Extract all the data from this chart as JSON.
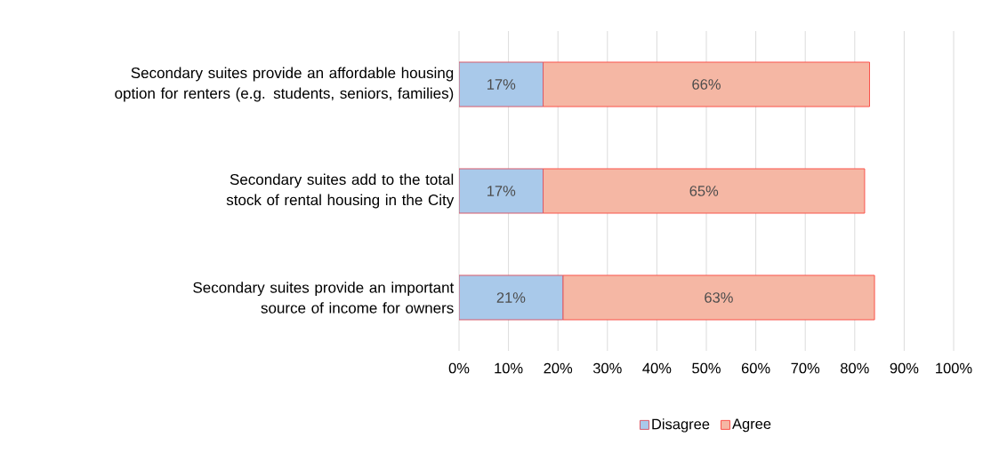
{
  "chart_data": {
    "type": "bar",
    "orientation": "horizontal",
    "stacked": true,
    "categories": [
      "Secondary suites provide an affordable housing option for renters (e.g. students, seniors, families)",
      "Secondary suites add to the total stock of rental housing in the City",
      "Secondary suites provide an important source of income for owners"
    ],
    "series": [
      {
        "name": "Disagree",
        "color": "#a9c9ea",
        "values": [
          17,
          17,
          21
        ],
        "value_labels": [
          "17%",
          "17%",
          "21%"
        ]
      },
      {
        "name": "Agree",
        "color": "#f5b7a4",
        "values": [
          66,
          65,
          63
        ],
        "value_labels": [
          "66%",
          "65%",
          "63%"
        ]
      }
    ],
    "xlim": [
      0,
      100
    ],
    "xticks": [
      {
        "value": 0,
        "label": "0%"
      },
      {
        "value": 10,
        "label": "10%"
      },
      {
        "value": 20,
        "label": "20%"
      },
      {
        "value": 30,
        "label": "30%"
      },
      {
        "value": 40,
        "label": "40%"
      },
      {
        "value": 50,
        "label": "50%"
      },
      {
        "value": 60,
        "label": "60%"
      },
      {
        "value": 70,
        "label": "70%"
      },
      {
        "value": 80,
        "label": "80%"
      },
      {
        "value": 90,
        "label": "90%"
      },
      {
        "value": 100,
        "label": "100%"
      }
    ],
    "grid": "x",
    "legend": "bottom"
  }
}
